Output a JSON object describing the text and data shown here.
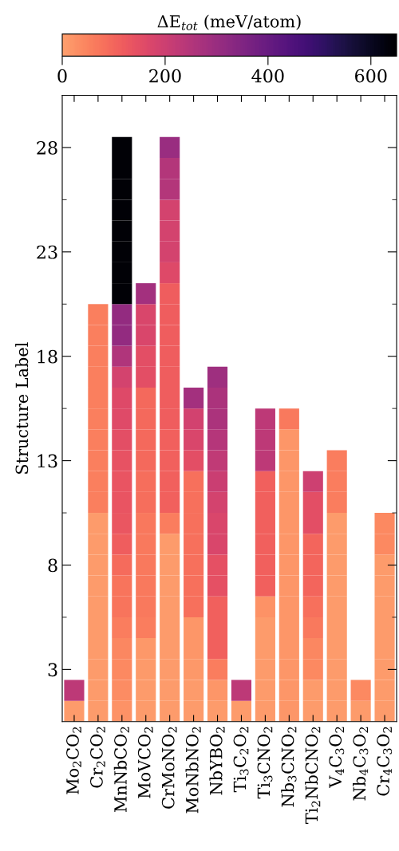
{
  "chart_data": {
    "type": "heatmap",
    "ylabel": "Structure Label",
    "clabel": "ΔE$_{tot}$ (meV/atom)",
    "categories": [
      "Mo$_{2}$CO$_{2}$",
      "Cr$_{2}$CO$_{2}$",
      "MnNbCO$_{2}$",
      "MoVCO$_{2}$",
      "CrMoNO$_{2}$",
      "MoNbNO$_{2}$",
      "NbYBO$_{2}$",
      "Ti$_{3}$C$_{2}$O$_{2}$",
      "Ti$_{3}$CNO$_{2}$",
      "Nb$_{3}$CNO$_{2}$",
      "Ti$_{2}$NbCNO$_{2}$",
      "V$_{4}$C$_{3}$O$_{2}$",
      "Nb$_{4}$C$_{3}$O$_{2}$",
      "Cr$_{4}$C$_{3}$O$_{2}$"
    ],
    "y_categories": [
      "28",
      null,
      null,
      null,
      null,
      "23",
      null,
      null,
      null,
      null,
      "18",
      null,
      null,
      null,
      null,
      "13",
      null,
      null,
      null,
      null,
      "8",
      null,
      null,
      null,
      null,
      "3",
      null,
      null
    ],
    "cells": [
      [
        null,
        null,
        640,
        null,
        300,
        null,
        null,
        null,
        null,
        null,
        null,
        null,
        null,
        null
      ],
      [
        null,
        null,
        640,
        null,
        250,
        null,
        null,
        null,
        null,
        null,
        null,
        null,
        null,
        null
      ],
      [
        null,
        null,
        640,
        null,
        250,
        null,
        null,
        null,
        null,
        null,
        null,
        null,
        null,
        null
      ],
      [
        null,
        null,
        640,
        null,
        185,
        null,
        null,
        null,
        null,
        null,
        null,
        null,
        null,
        null
      ],
      [
        null,
        null,
        640,
        null,
        185,
        null,
        null,
        null,
        null,
        null,
        null,
        null,
        null,
        null
      ],
      [
        null,
        null,
        640,
        null,
        185,
        null,
        null,
        null,
        null,
        null,
        null,
        null,
        null,
        null
      ],
      [
        null,
        null,
        640,
        null,
        165,
        null,
        null,
        null,
        null,
        null,
        null,
        null,
        null,
        null
      ],
      [
        null,
        null,
        640,
        280,
        115,
        null,
        null,
        null,
        null,
        null,
        null,
        null,
        null,
        null
      ],
      [
        null,
        55,
        310,
        175,
        115,
        null,
        null,
        null,
        null,
        null,
        null,
        null,
        null,
        null
      ],
      [
        null,
        55,
        310,
        175,
        115,
        null,
        null,
        null,
        null,
        null,
        null,
        null,
        null,
        null
      ],
      [
        null,
        55,
        255,
        150,
        115,
        null,
        null,
        null,
        null,
        null,
        null,
        null,
        null,
        null
      ],
      [
        null,
        55,
        185,
        150,
        115,
        null,
        290,
        null,
        null,
        null,
        null,
        null,
        null,
        null
      ],
      [
        null,
        55,
        165,
        95,
        115,
        280,
        265,
        null,
        null,
        null,
        null,
        null,
        null,
        null
      ],
      [
        null,
        55,
        160,
        95,
        115,
        190,
        265,
        null,
        230,
        65,
        null,
        null,
        null,
        null
      ],
      [
        null,
        55,
        150,
        95,
        110,
        175,
        245,
        null,
        230,
        20,
        null,
        null,
        null,
        null
      ],
      [
        null,
        55,
        140,
        95,
        110,
        150,
        225,
        null,
        230,
        20,
        null,
        60,
        null,
        null
      ],
      [
        null,
        55,
        135,
        85,
        110,
        80,
        205,
        null,
        110,
        20,
        200,
        60,
        null,
        null
      ],
      [
        null,
        55,
        135,
        85,
        110,
        80,
        185,
        null,
        110,
        20,
        150,
        60,
        null,
        null
      ],
      [
        null,
        10,
        130,
        70,
        60,
        80,
        175,
        null,
        110,
        20,
        150,
        10,
        null,
        40
      ],
      [
        null,
        10,
        115,
        65,
        10,
        80,
        175,
        null,
        110,
        20,
        100,
        10,
        null,
        40
      ],
      [
        null,
        10,
        90,
        65,
        10,
        80,
        145,
        null,
        110,
        20,
        100,
        10,
        null,
        10
      ],
      [
        null,
        10,
        75,
        65,
        10,
        80,
        145,
        null,
        110,
        20,
        100,
        10,
        null,
        10
      ],
      [
        null,
        10,
        75,
        65,
        10,
        80,
        110,
        null,
        25,
        20,
        80,
        10,
        null,
        10
      ],
      [
        null,
        10,
        60,
        60,
        10,
        20,
        110,
        null,
        10,
        20,
        65,
        10,
        null,
        10
      ],
      [
        null,
        10,
        45,
        15,
        10,
        20,
        110,
        null,
        10,
        20,
        45,
        10,
        null,
        10
      ],
      [
        null,
        10,
        40,
        12,
        10,
        15,
        60,
        null,
        10,
        20,
        40,
        10,
        null,
        10
      ],
      [
        230,
        10,
        35,
        10,
        10,
        10,
        20,
        230,
        10,
        20,
        10,
        10,
        40,
        10
      ],
      [
        10,
        10,
        25,
        10,
        10,
        10,
        10,
        10,
        10,
        20,
        10,
        10,
        10,
        10
      ]
    ],
    "clim": [
      0,
      650
    ],
    "cticks": [
      0,
      200,
      400,
      600
    ]
  }
}
